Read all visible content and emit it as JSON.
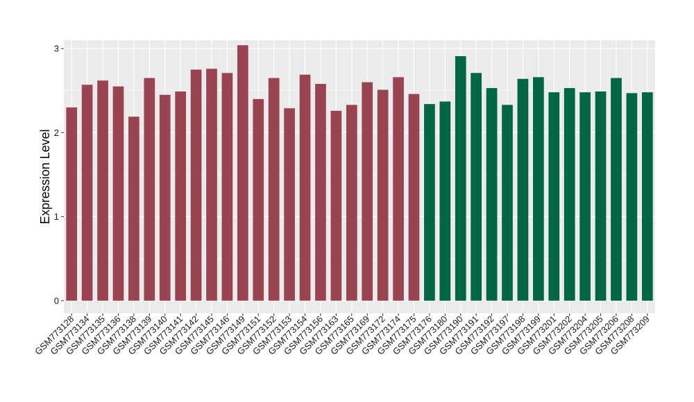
{
  "chart_data": {
    "type": "bar",
    "title": "",
    "xlabel": "",
    "ylabel": "Expression Level",
    "ylim": [
      -0.15,
      3.1
    ],
    "yticks": [
      0,
      1,
      2,
      3
    ],
    "grid": true,
    "legend": "none",
    "background_color": "#ebebeb",
    "grid_color": "#ffffff",
    "categories": [
      "GSM773128",
      "GSM773134",
      "GSM773135",
      "GSM773136",
      "GSM773138",
      "GSM773139",
      "GSM773140",
      "GSM773141",
      "GSM773142",
      "GSM773145",
      "GSM773146",
      "GSM773149",
      "GSM773151",
      "GSM773152",
      "GSM773153",
      "GSM773154",
      "GSM773156",
      "GSM773163",
      "GSM773165",
      "GSM773169",
      "GSM773172",
      "GSM773174",
      "GSM773175",
      "GSM773176",
      "GSM773180",
      "GSM773190",
      "GSM773191",
      "GSM773192",
      "GSM773197",
      "GSM773198",
      "GSM773199",
      "GSM773201",
      "GSM773202",
      "GSM773204",
      "GSM773205",
      "GSM773206",
      "GSM773208",
      "GSM773209"
    ],
    "values": [
      2.3,
      2.57,
      2.62,
      2.55,
      2.19,
      2.65,
      2.45,
      2.49,
      2.75,
      2.76,
      2.71,
      3.04,
      2.4,
      2.65,
      2.29,
      2.69,
      2.58,
      2.26,
      2.33,
      2.6,
      2.51,
      2.66,
      2.46,
      2.34,
      2.37,
      2.91,
      2.71,
      2.53,
      2.33,
      2.64,
      2.66,
      2.48,
      2.53,
      2.48,
      2.49,
      2.65,
      2.47,
      2.48
    ],
    "bar_colors": [
      "#9a4452",
      "#9a4452",
      "#9a4452",
      "#9a4452",
      "#9a4452",
      "#9a4452",
      "#9a4452",
      "#9a4452",
      "#9a4452",
      "#9a4452",
      "#9a4452",
      "#9a4452",
      "#9a4452",
      "#9a4452",
      "#9a4452",
      "#9a4452",
      "#9a4452",
      "#9a4452",
      "#9a4452",
      "#9a4452",
      "#9a4452",
      "#9a4452",
      "#9a4452",
      "#006644",
      "#006644",
      "#006644",
      "#006644",
      "#006644",
      "#006644",
      "#006644",
      "#006644",
      "#006644",
      "#006644",
      "#006644",
      "#006644",
      "#006644",
      "#006644",
      "#006644"
    ]
  }
}
